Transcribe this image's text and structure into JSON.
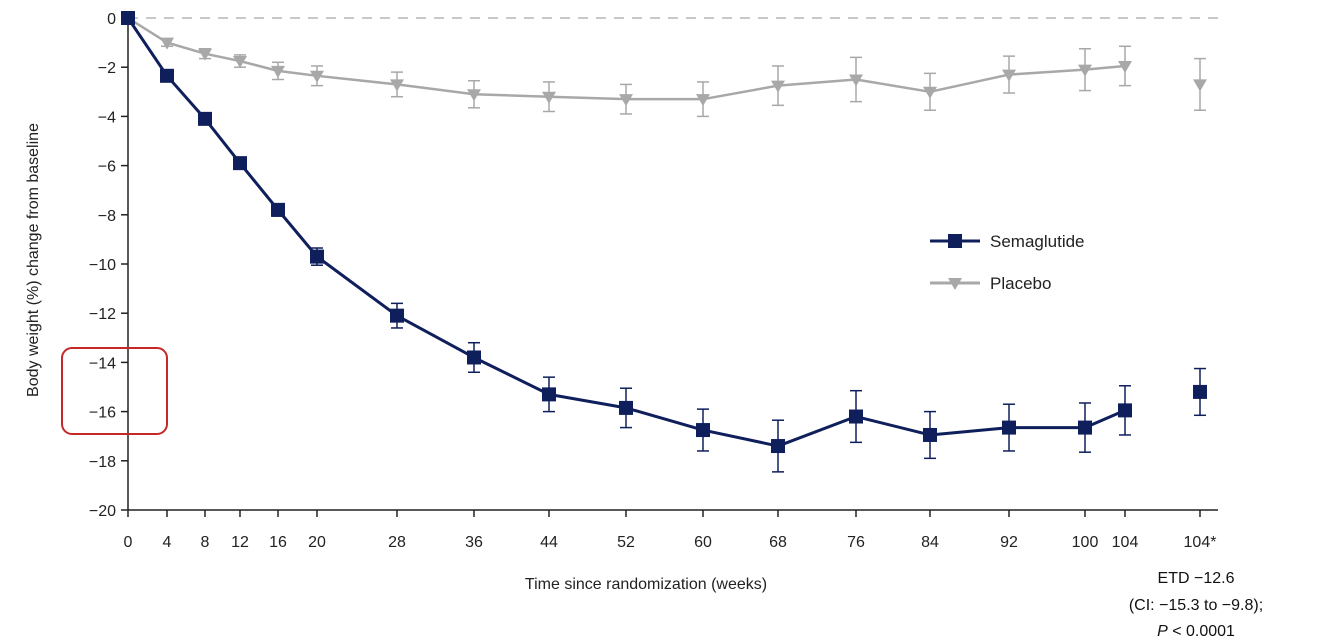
{
  "chart_data": {
    "type": "line",
    "title": "",
    "xlabel": "Time since randomization (weeks)",
    "ylabel": "Body weight (%) change from baseline",
    "ylim": [
      -20,
      0
    ],
    "yticks": [
      0,
      -2,
      -4,
      -6,
      -8,
      -10,
      -12,
      -14,
      -16,
      -18,
      -20
    ],
    "yticklabels": [
      "0",
      "−2",
      "−4",
      "−6",
      "−8",
      "−10",
      "−12",
      "−14",
      "−16",
      "−18",
      "−20"
    ],
    "xticklabels": [
      "0",
      "4",
      "8",
      "12",
      "16",
      "20",
      "28",
      "36",
      "44",
      "52",
      "60",
      "68",
      "76",
      "84",
      "92",
      "100",
      "104",
      "104*"
    ],
    "x": [
      0,
      4,
      8,
      12,
      16,
      20,
      28,
      36,
      44,
      52,
      60,
      68,
      76,
      84,
      92,
      100,
      104
    ],
    "baseline_reference": 0,
    "legend_position": "right",
    "series": [
      {
        "name": "Semaglutide",
        "color": "#0f1f5c",
        "marker": "square",
        "values": [
          0,
          -2.35,
          -4.1,
          -5.9,
          -7.8,
          -9.7,
          -12.1,
          -13.8,
          -15.3,
          -15.85,
          -16.75,
          -17.4,
          -16.2,
          -16.95,
          -16.65,
          -16.65,
          -15.95
        ],
        "error": [
          0,
          0.15,
          0.15,
          0.2,
          0.25,
          0.35,
          0.5,
          0.6,
          0.7,
          0.8,
          0.85,
          1.05,
          1.05,
          0.95,
          0.95,
          1.0,
          1.0
        ],
        "end_point": {
          "value": -15.2,
          "error": 0.95
        }
      },
      {
        "name": "Placebo",
        "color": "#a8a8a8",
        "marker": "triangle-down",
        "values": [
          0,
          -1.0,
          -1.45,
          -1.75,
          -2.15,
          -2.35,
          -2.7,
          -3.1,
          -3.2,
          -3.3,
          -3.3,
          -2.75,
          -2.5,
          -3.0,
          -2.3,
          -2.1,
          -1.95
        ],
        "error": [
          0,
          0.15,
          0.2,
          0.25,
          0.35,
          0.4,
          0.5,
          0.55,
          0.6,
          0.6,
          0.7,
          0.8,
          0.9,
          0.75,
          0.75,
          0.85,
          0.8
        ],
        "end_point": {
          "value": -2.7,
          "error": 1.05
        }
      }
    ],
    "annotation": {
      "line1": "ETD −12.6",
      "line2": "(CI: −15.3 to −9.8);",
      "line3_italic": "P",
      "line3_rest": " < 0.0001"
    },
    "highlight_box": {
      "label": "callout",
      "color": "#c62828"
    }
  }
}
